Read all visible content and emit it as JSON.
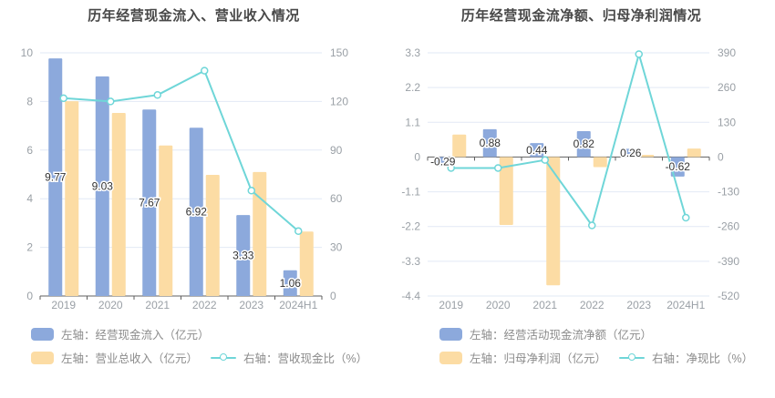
{
  "page": {
    "background": "#ffffff"
  },
  "colors": {
    "bar_blue": "#8ca9dc",
    "bar_yellow": "#fcdca4",
    "line_teal": "#6fd6d8",
    "grid": "#e2e9f5",
    "axis_text": "#9aa0a6",
    "value_label": "#333333",
    "title_text": "#484848",
    "legend_text": "#8c8c8c",
    "zero_axis": "#5f5f5f"
  },
  "chart_data": [
    {
      "type": "bar",
      "subtype": "combo-bar-line-dual-axis",
      "title": "历年经营现金流入、营业收入情况",
      "categories": [
        "2019",
        "2020",
        "2021",
        "2022",
        "2023",
        "2024H1"
      ],
      "series": [
        {
          "name": "左轴：经营现金流入（亿元）",
          "type": "bar",
          "axis": "left",
          "color": "#8ca9dc",
          "values": [
            9.77,
            9.03,
            7.67,
            6.92,
            3.33,
            1.06
          ],
          "value_labels": true
        },
        {
          "name": "左轴：营业总收入（亿元）",
          "type": "bar",
          "axis": "left",
          "color": "#fcdca4",
          "values": [
            8.01,
            7.53,
            6.19,
            4.98,
            5.1,
            2.65
          ],
          "value_labels": false
        },
        {
          "name": "右轴：营收现金比（%）",
          "type": "line",
          "axis": "right",
          "color": "#6fd6d8",
          "values": [
            122,
            120,
            124,
            139,
            65,
            40
          ],
          "value_labels": false
        }
      ],
      "left_axis": {
        "min": 0,
        "max": 10,
        "ticks": [
          10,
          8,
          6,
          4,
          2,
          0
        ]
      },
      "right_axis": {
        "min": 0,
        "max": 150,
        "ticks": [
          150,
          120,
          90,
          60,
          30,
          0
        ]
      },
      "grid": true,
      "legend_position": "bottom"
    },
    {
      "type": "bar",
      "subtype": "combo-bar-line-dual-axis",
      "title": "历年经营现金流净额、归母净利润情况",
      "categories": [
        "2019",
        "2020",
        "2021",
        "2022",
        "2023",
        "2024H1"
      ],
      "series": [
        {
          "name": "左轴：经营活动现金流净额（亿元）",
          "type": "bar",
          "axis": "left",
          "color": "#8ca9dc",
          "values": [
            -0.29,
            0.88,
            0.44,
            0.82,
            0.26,
            -0.62
          ],
          "value_labels": true
        },
        {
          "name": "左轴：归母净利润（亿元）",
          "type": "bar",
          "axis": "left",
          "color": "#fcdca4",
          "values": [
            0.71,
            -2.15,
            -4.06,
            -0.32,
            0.07,
            0.27
          ],
          "value_labels": false
        },
        {
          "name": "右轴：净现比（%）",
          "type": "line",
          "axis": "right",
          "color": "#6fd6d8",
          "values": [
            -41,
            -41,
            -11,
            -256,
            385,
            -227
          ],
          "value_labels": false
        }
      ],
      "left_axis": {
        "min": -4.4,
        "max": 3.3,
        "ticks": [
          3.3,
          2.2,
          1.1,
          0,
          -1.1,
          -2.2,
          -3.3,
          -4.4
        ]
      },
      "right_axis": {
        "min": -520,
        "max": 390,
        "ticks": [
          390,
          260,
          130,
          0,
          -130,
          -260,
          -390,
          -520
        ]
      },
      "grid": true,
      "legend_position": "bottom"
    }
  ]
}
